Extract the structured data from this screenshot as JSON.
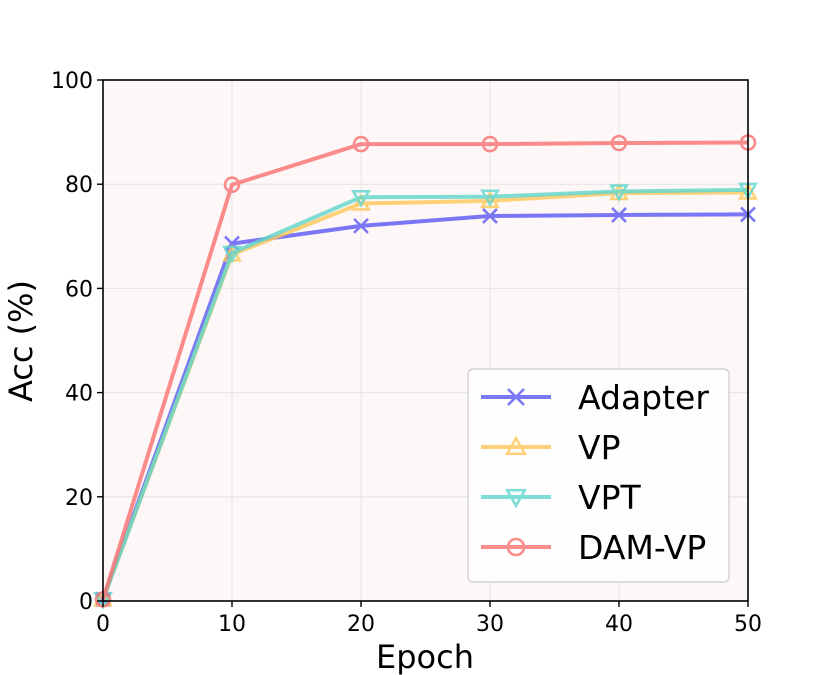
{
  "chart_data": {
    "type": "line",
    "xlabel": "Epoch",
    "ylabel": "Acc (%)",
    "xlim": [
      0,
      50
    ],
    "ylim": [
      0,
      100
    ],
    "xticks": [
      0,
      10,
      20,
      30,
      40,
      50
    ],
    "yticks": [
      0,
      20,
      40,
      60,
      80,
      100
    ],
    "grid": true,
    "legend_position": "lower-right",
    "background_color": "#fdf7f7",
    "x": [
      0,
      10,
      20,
      30,
      40,
      50
    ],
    "series": [
      {
        "name": "Adapter",
        "marker": "x",
        "color": "#5b57f5",
        "values": [
          0.3,
          68.6,
          72.0,
          73.9,
          74.1,
          74.2
        ]
      },
      {
        "name": "VP",
        "marker": "triangle-up",
        "color": "#ffc85a",
        "values": [
          0.3,
          66.5,
          76.3,
          76.8,
          78.3,
          78.4
        ]
      },
      {
        "name": "VPT",
        "marker": "triangle-down",
        "color": "#5fd6cc",
        "values": [
          0.3,
          66.8,
          77.5,
          77.6,
          78.6,
          78.9
        ]
      },
      {
        "name": "DAM-VP",
        "marker": "circle",
        "color": "#fb7070",
        "values": [
          0.3,
          79.9,
          87.7,
          87.7,
          87.9,
          88.0
        ]
      }
    ]
  }
}
